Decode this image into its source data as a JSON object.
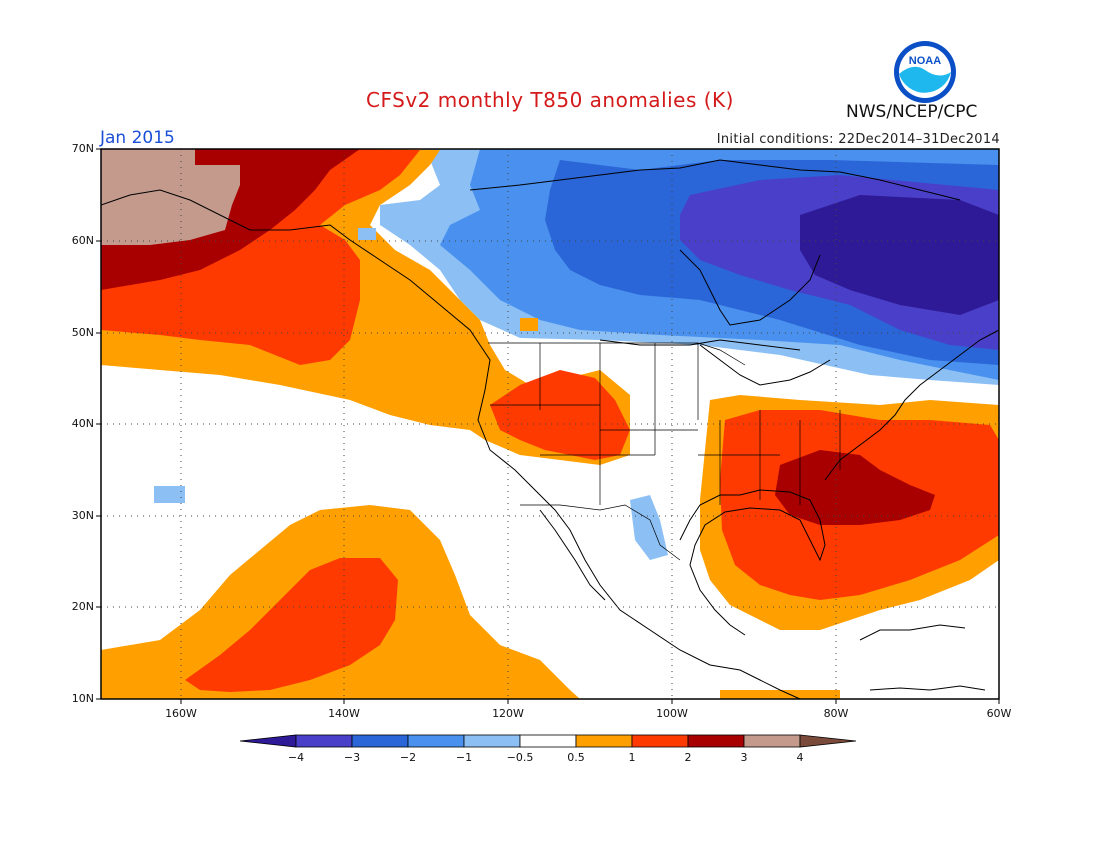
{
  "header": {
    "title": "CFSv2 monthly T850 anomalies (K)",
    "agency": "NWS/NCEP/CPC",
    "logo_text": "NOAA",
    "valid_month": "Jan 2015",
    "initial_conditions": "Initial conditions: 22Dec2014–31Dec2014"
  },
  "map": {
    "projection": "lat-lon",
    "extent": {
      "lon": [
        -172,
        -60
      ],
      "lat": [
        10,
        70
      ]
    },
    "lat_labels": [
      "70N",
      "60N",
      "50N",
      "40N",
      "30N",
      "20N",
      "10N"
    ],
    "lon_labels": [
      "160W",
      "140W",
      "120W",
      "100W",
      "80W",
      "60W"
    ],
    "grid": "dotted"
  },
  "colorbar": {
    "labels": [
      "−4",
      "−3",
      "−2",
      "−1",
      "−0.5",
      "0.5",
      "1",
      "2",
      "3",
      "4"
    ],
    "colors": [
      "#2e1a96",
      "#4a3fc8",
      "#2a66d8",
      "#4a90ee",
      "#8cc0f4",
      "#ffffff",
      "#ff9f00",
      "#ff3a00",
      "#a80000",
      "#c39a8c",
      "#7a4a3a"
    ]
  }
}
